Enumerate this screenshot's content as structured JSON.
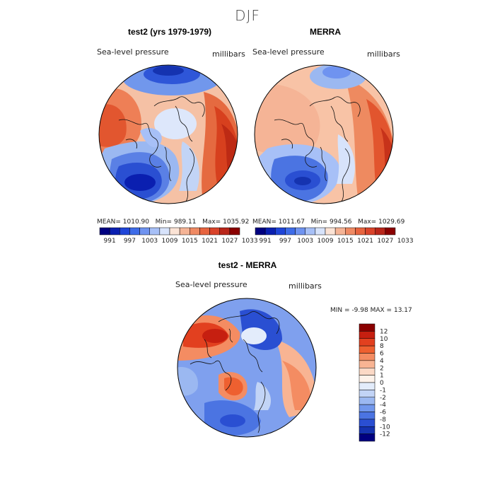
{
  "main_title": "DJF",
  "panels": [
    {
      "title": "test2 (yrs 1979-1979)",
      "variable": "Sea-level pressure",
      "units": "millibars",
      "stats": {
        "mean_label": "MEAN=",
        "mean": "1010.90",
        "min_label": "Min=",
        "min": "989.11",
        "max_label": "Max=",
        "max": "1035.92"
      }
    },
    {
      "title": "MERRA",
      "variable": "Sea-level pressure",
      "units": "millibars",
      "stats": {
        "mean_label": "MEAN=",
        "mean": "1011.67",
        "min_label": "Min=",
        "min": "994.56",
        "max_label": "Max=",
        "max": "1029.69"
      }
    }
  ],
  "field_colorbar": {
    "colors": [
      "#000080",
      "#0a1fb0",
      "#1f45d8",
      "#3e6ce8",
      "#6f93f0",
      "#a7c0f7",
      "#d7e3fb",
      "#fbe3d5",
      "#f5b496",
      "#ef8a64",
      "#e7643f",
      "#d9432a",
      "#b9261a",
      "#8a0000"
    ],
    "ticks": [
      "991",
      "997",
      "1003",
      "1009",
      "1015",
      "1021",
      "1027",
      "1033"
    ]
  },
  "diff_panel": {
    "title": "test2 - MERRA",
    "variable": "Sea-level pressure",
    "units": "millibars",
    "min_label": "MIN =",
    "min": "-9.98",
    "max_label": "MAX =",
    "max": "13.17"
  },
  "diff_colorbar": {
    "colors": [
      "#8a0000",
      "#c61f10",
      "#e2401f",
      "#ee6030",
      "#f48c62",
      "#f8b493",
      "#fbd9c6",
      "#fdf2ea",
      "#e3ecfb",
      "#c2d4f6",
      "#9bb8f1",
      "#7197ec",
      "#4b74e2",
      "#2a4fd2",
      "#1533b0",
      "#000080"
    ],
    "ticks": [
      "12",
      "10",
      "8",
      "6",
      "4",
      "2",
      "1",
      "0",
      "-1",
      "-2",
      "-4",
      "-6",
      "-8",
      "-10",
      "-12"
    ]
  }
}
